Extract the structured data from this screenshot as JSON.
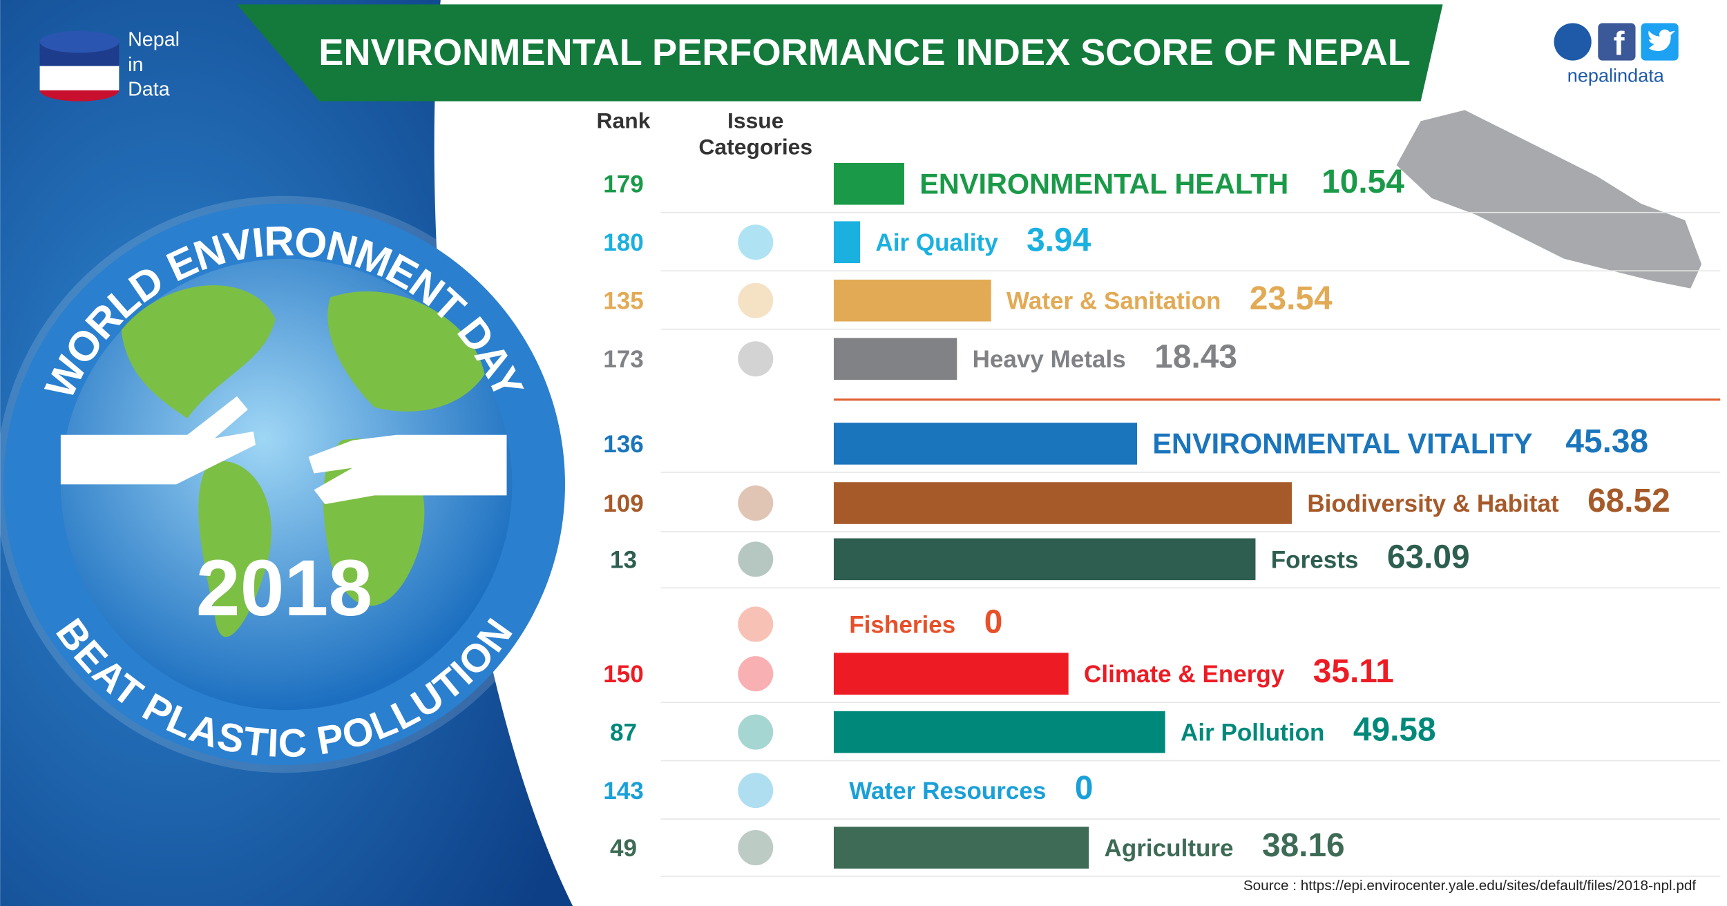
{
  "header": {
    "logo_text": [
      "Nepal",
      "in",
      "Data"
    ],
    "handle": "nepalindata"
  },
  "badge": {
    "line1": "WORLD ENVIRONMENT DAY",
    "year": "2018",
    "line2": "BEAT PLASTIC POLLUTION"
  },
  "chart_data": {
    "type": "bar",
    "orientation": "horizontal",
    "title": "ENVIRONMENTAL PERFORMANCE INDEX SCORE OF NEPAL",
    "rank_label": "Rank",
    "category_label": [
      "Issue",
      "Categories"
    ],
    "categories": [
      "ENVIRONMENTAL HEALTH",
      "Air Quality",
      "Water & Sanitation",
      "Heavy Metals",
      "ENVIRONMENTAL VITALITY",
      "Biodiversity & Habitat",
      "Forests",
      "Fisheries",
      "Climate & Energy",
      "Air Pollution",
      "Water Resources",
      "Agriculture"
    ],
    "values": [
      10.54,
      3.94,
      23.54,
      18.43,
      45.38,
      68.52,
      63.09,
      0,
      35.11,
      49.58,
      0,
      38.16
    ],
    "ranks": [
      179,
      180,
      135,
      173,
      136,
      109,
      13,
      null,
      150,
      87,
      143,
      49
    ],
    "colors": [
      "#1a9a48",
      "#1ab0e0",
      "#e2aa55",
      "#808285",
      "#1a75bc",
      "#a65a2a",
      "#2d5e50",
      "#e8502a",
      "#ed1c24",
      "#00897b",
      "#1aa0d8",
      "#3e6b56"
    ],
    "source": "Source : https://epi.envirocenter.yale.edu/sites/default/files/2018-npl.pdf"
  }
}
